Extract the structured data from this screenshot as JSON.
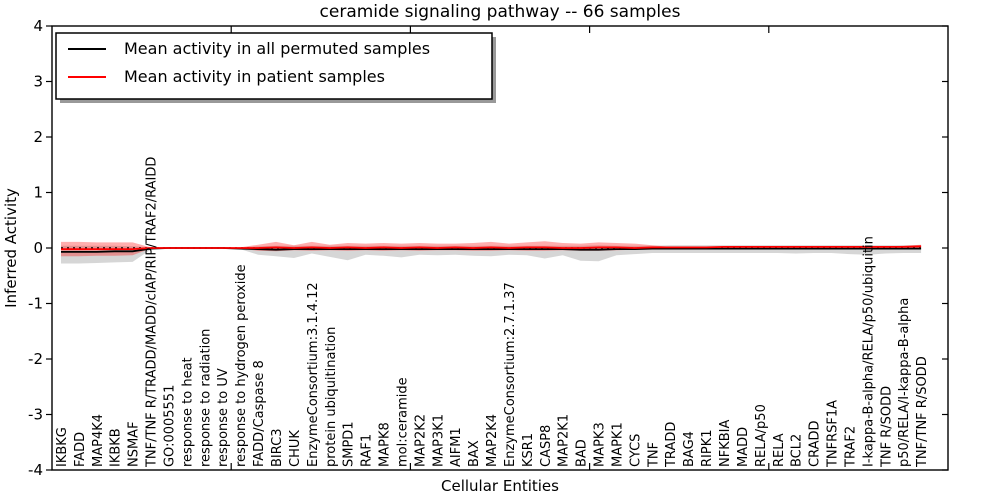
{
  "figure": {
    "title": "ceramide signaling pathway -- 66 samples"
  },
  "legend": {
    "items": [
      {
        "label": "Mean activity in all permuted samples",
        "color": "#000000"
      },
      {
        "label": "Mean activity in patient samples",
        "color": "#ff0000"
      }
    ]
  },
  "chart_data": {
    "type": "line",
    "title": "ceramide signaling pathway -- 66 samples",
    "xlabel": "Cellular Entities",
    "ylabel": "Inferred Activity",
    "ylim": [
      -4,
      4
    ],
    "y_ticks": [
      -4,
      -3,
      -2,
      -1,
      0,
      1,
      2,
      3,
      4
    ],
    "xlim": [
      0,
      50
    ],
    "x_tick_values": [
      10,
      20,
      30,
      40
    ],
    "grid": false,
    "legend_position": "upper left",
    "zero_line": {
      "y": 0,
      "style": "dotted",
      "color": "#000000"
    },
    "categories": [
      "IKBKG",
      "FADD",
      "MAP4K4",
      "IKBKB",
      "NSMAF",
      "TNF/TNF R/TRADD/MADD/cIAP/RIP/TRAF2/RAIDD",
      "GO:0005551",
      "response to heat",
      "response to radiation",
      "response to UV",
      "response to hydrogen peroxide",
      "FADD/Caspase 8",
      "BIRC3",
      "CHUK",
      "EnzymeConsortium:3.1.4.12",
      "protein ubiquitination",
      "SMPD1",
      "RAF1",
      "MAPK8",
      "mol:ceramide",
      "MAP2K2",
      "MAP3K1",
      "AIFM1",
      "BAX",
      "MAP2K4",
      "EnzymeConsortium:2.7.1.37",
      "KSR1",
      "CASP8",
      "MAP2K1",
      "BAD",
      "MAPK3",
      "MAPK1",
      "CYCS",
      "TNF",
      "TRADD",
      "BAG4",
      "RIPK1",
      "NFKBIA",
      "MADD",
      "RELA/p50",
      "RELA",
      "BCL2",
      "CRADD",
      "TNFRSF1A",
      "TRAF2",
      "I-kappa-B-alpha/RELA/p50/ubiquitin",
      "TNF R/SODD",
      "p50/RELA/I-kappa-B-alpha",
      "TNF/TNF R/SODD"
    ],
    "series": [
      {
        "name": "Mean activity in all permuted samples",
        "color": "#000000",
        "band_color": "rgba(128,128,128,0.32)",
        "values": [
          -0.07,
          -0.07,
          -0.07,
          -0.06,
          -0.06,
          -0.01,
          0,
          0,
          0,
          0,
          -0.01,
          -0.02,
          -0.03,
          -0.02,
          -0.02,
          -0.02,
          -0.02,
          -0.02,
          -0.02,
          -0.02,
          -0.02,
          -0.02,
          -0.02,
          -0.02,
          -0.02,
          -0.02,
          -0.02,
          -0.02,
          -0.02,
          -0.03,
          -0.03,
          -0.02,
          -0.02,
          -0.01,
          -0.01,
          -0.01,
          -0.01,
          -0.01,
          -0.01,
          -0.01,
          -0.01,
          -0.01,
          -0.01,
          -0.01,
          -0.01,
          -0.01,
          -0.01,
          -0.01,
          -0.01
        ],
        "upper": [
          0.04,
          0.04,
          0.04,
          0.04,
          0.03,
          0.01,
          0.01,
          0.01,
          0.01,
          0.01,
          0.01,
          0.03,
          0.04,
          0.04,
          0.04,
          0.04,
          0.04,
          0.04,
          0.04,
          0.04,
          0.04,
          0.04,
          0.04,
          0.04,
          0.04,
          0.04,
          0.04,
          0.04,
          0.04,
          0.04,
          0.05,
          0.04,
          0.04,
          0.04,
          0.05,
          0.05,
          0.05,
          0.05,
          0.05,
          0.05,
          0.05,
          0.05,
          0.05,
          0.05,
          0.05,
          0.05,
          0.05,
          0.05,
          0.05
        ],
        "lower": [
          -0.28,
          -0.28,
          -0.27,
          -0.26,
          -0.25,
          -0.03,
          -0.01,
          -0.01,
          -0.01,
          -0.01,
          -0.02,
          -0.12,
          -0.15,
          -0.18,
          -0.1,
          -0.16,
          -0.22,
          -0.12,
          -0.14,
          -0.17,
          -0.12,
          -0.13,
          -0.12,
          -0.14,
          -0.15,
          -0.12,
          -0.13,
          -0.19,
          -0.13,
          -0.23,
          -0.24,
          -0.13,
          -0.11,
          -0.09,
          -0.09,
          -0.09,
          -0.09,
          -0.09,
          -0.09,
          -0.09,
          -0.09,
          -0.1,
          -0.09,
          -0.09,
          -0.11,
          -0.12,
          -0.1,
          -0.09,
          -0.09
        ]
      },
      {
        "name": "Mean activity in patient samples",
        "color": "#ff0000",
        "band_color": "rgba(255,0,0,0.32)",
        "values": [
          -0.02,
          -0.02,
          -0.02,
          -0.02,
          -0.02,
          0,
          0,
          0,
          0,
          0,
          0,
          0,
          0.01,
          0,
          0.01,
          0,
          0.01,
          0,
          0.01,
          0,
          0.01,
          0,
          0.01,
          0,
          0.01,
          0,
          0.01,
          0.01,
          0,
          0,
          0.01,
          0.01,
          0,
          0.01,
          0.01,
          0.01,
          0.01,
          0.02,
          0.02,
          0.02,
          0.02,
          0.02,
          0.02,
          0.02,
          0.02,
          0.02,
          0.02,
          0.02,
          0.03
        ],
        "upper": [
          0.11,
          0.11,
          0.1,
          0.1,
          0.1,
          0.01,
          0.01,
          0.01,
          0.01,
          0.01,
          0.01,
          0.06,
          0.11,
          0.05,
          0.11,
          0.06,
          0.09,
          0.08,
          0.09,
          0.08,
          0.09,
          0.08,
          0.08,
          0.09,
          0.11,
          0.08,
          0.1,
          0.12,
          0.09,
          0.08,
          0.1,
          0.09,
          0.08,
          0.05,
          0.02,
          0.02,
          0.02,
          0.03,
          0.03,
          0.03,
          0.03,
          0.03,
          0.03,
          0.03,
          0.03,
          0.03,
          0.03,
          0.04,
          0.06
        ],
        "lower": [
          -0.15,
          -0.15,
          -0.14,
          -0.14,
          -0.13,
          -0.01,
          0,
          0,
          0,
          0,
          -0.01,
          -0.05,
          -0.06,
          -0.04,
          -0.05,
          -0.04,
          -0.05,
          -0.04,
          -0.05,
          -0.04,
          -0.05,
          -0.04,
          -0.04,
          -0.05,
          -0.05,
          -0.04,
          -0.05,
          -0.05,
          -0.04,
          -0.05,
          -0.05,
          -0.04,
          -0.03,
          -0.02,
          0,
          0,
          0,
          0.01,
          0.01,
          0.01,
          0.01,
          0.01,
          0.01,
          0.01,
          0.01,
          0.01,
          0.01,
          0.01,
          0
        ]
      }
    ]
  }
}
